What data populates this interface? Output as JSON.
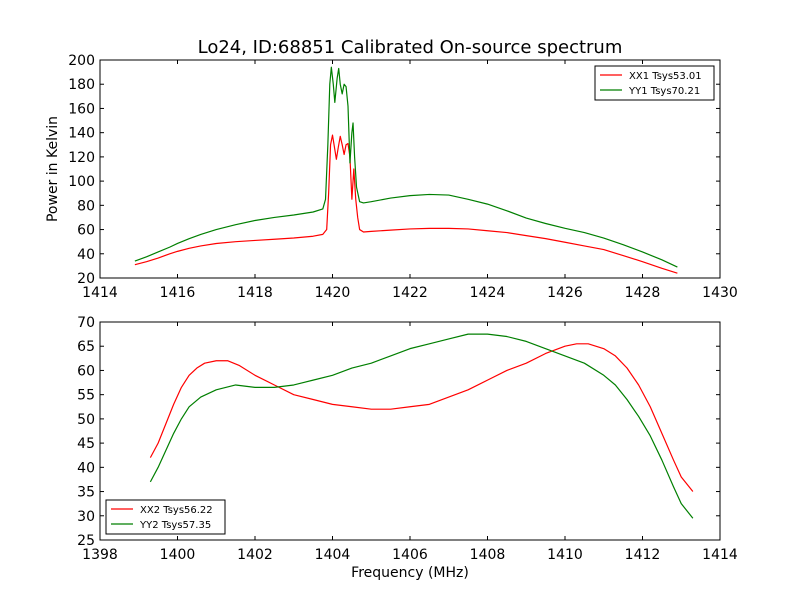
{
  "figure": {
    "title": "Lo24, ID:68851 Calibrated On-source spectrum"
  },
  "colors": {
    "red": "#ff0000",
    "green": "#007f00"
  },
  "chart_data": [
    {
      "type": "line",
      "title": "Lo24, ID:68851 Calibrated On-source spectrum",
      "xlabel": "",
      "ylabel": "Power in Kelvin",
      "xlim": [
        1414,
        1430
      ],
      "ylim": [
        20,
        200
      ],
      "x_ticks": [
        "1414",
        "1416",
        "1418",
        "1420",
        "1422",
        "1424",
        "1426",
        "1428",
        "1430"
      ],
      "y_ticks": [
        "20",
        "40",
        "60",
        "80",
        "100",
        "120",
        "140",
        "160",
        "180",
        "200"
      ],
      "legend_position": "top-right",
      "grid": false,
      "series": [
        {
          "name": "XX1 Tsys53.01",
          "color": "#ff0000",
          "points": [
            [
              1414.9,
              31
            ],
            [
              1415.2,
              33.5
            ],
            [
              1415.5,
              36.5
            ],
            [
              1415.8,
              40
            ],
            [
              1416.0,
              42
            ],
            [
              1416.3,
              44.5
            ],
            [
              1416.6,
              46.5
            ],
            [
              1417.0,
              48.5
            ],
            [
              1417.5,
              50
            ],
            [
              1418.0,
              51
            ],
            [
              1418.5,
              52
            ],
            [
              1419.0,
              53
            ],
            [
              1419.5,
              54.5
            ],
            [
              1419.75,
              56
            ],
            [
              1419.85,
              60
            ],
            [
              1419.9,
              90
            ],
            [
              1419.95,
              130
            ],
            [
              1420.0,
              138
            ],
            [
              1420.05,
              128
            ],
            [
              1420.1,
              118
            ],
            [
              1420.15,
              128
            ],
            [
              1420.2,
              137
            ],
            [
              1420.25,
              130
            ],
            [
              1420.3,
              122
            ],
            [
              1420.35,
              130
            ],
            [
              1420.4,
              131
            ],
            [
              1420.45,
              120
            ],
            [
              1420.5,
              85
            ],
            [
              1420.55,
              110
            ],
            [
              1420.6,
              85
            ],
            [
              1420.65,
              70
            ],
            [
              1420.7,
              60
            ],
            [
              1420.8,
              58
            ],
            [
              1421.0,
              58.5
            ],
            [
              1421.5,
              59.5
            ],
            [
              1422.0,
              60.5
            ],
            [
              1422.5,
              61
            ],
            [
              1423.0,
              61
            ],
            [
              1423.5,
              60.5
            ],
            [
              1424.0,
              59
            ],
            [
              1424.5,
              57.5
            ],
            [
              1425.0,
              55
            ],
            [
              1425.5,
              52.5
            ],
            [
              1426.0,
              49.5
            ],
            [
              1426.5,
              46.5
            ],
            [
              1427.0,
              43.5
            ],
            [
              1427.5,
              38.5
            ],
            [
              1428.0,
              33.5
            ],
            [
              1428.5,
              28
            ],
            [
              1428.9,
              24
            ]
          ]
        },
        {
          "name": "YY1 Tsys70.21",
          "color": "#007f00",
          "points": [
            [
              1414.9,
              34
            ],
            [
              1415.2,
              37.5
            ],
            [
              1415.5,
              41.5
            ],
            [
              1415.8,
              45.5
            ],
            [
              1416.0,
              48.5
            ],
            [
              1416.3,
              52.5
            ],
            [
              1416.6,
              56
            ],
            [
              1417.0,
              60
            ],
            [
              1417.5,
              64
            ],
            [
              1418.0,
              67.5
            ],
            [
              1418.5,
              70
            ],
            [
              1419.0,
              72
            ],
            [
              1419.5,
              74.5
            ],
            [
              1419.75,
              77
            ],
            [
              1419.82,
              85
            ],
            [
              1419.88,
              130
            ],
            [
              1419.93,
              180
            ],
            [
              1419.97,
              194
            ],
            [
              1420.02,
              180
            ],
            [
              1420.06,
              165
            ],
            [
              1420.12,
              185
            ],
            [
              1420.16,
              193
            ],
            [
              1420.2,
              180
            ],
            [
              1420.25,
              172
            ],
            [
              1420.3,
              180
            ],
            [
              1420.35,
              178
            ],
            [
              1420.4,
              162
            ],
            [
              1420.45,
              115
            ],
            [
              1420.5,
              140
            ],
            [
              1420.53,
              148
            ],
            [
              1420.57,
              120
            ],
            [
              1420.62,
              95
            ],
            [
              1420.7,
              83
            ],
            [
              1420.8,
              82
            ],
            [
              1421.0,
              83
            ],
            [
              1421.5,
              86
            ],
            [
              1422.0,
              88
            ],
            [
              1422.5,
              89
            ],
            [
              1423.0,
              88.5
            ],
            [
              1423.5,
              85
            ],
            [
              1424.0,
              81
            ],
            [
              1424.5,
              75.5
            ],
            [
              1425.0,
              69.5
            ],
            [
              1425.5,
              65
            ],
            [
              1426.0,
              61
            ],
            [
              1426.5,
              57.5
            ],
            [
              1427.0,
              53
            ],
            [
              1427.5,
              47.5
            ],
            [
              1428.0,
              41.5
            ],
            [
              1428.5,
              35
            ],
            [
              1428.9,
              29
            ]
          ]
        }
      ]
    },
    {
      "type": "line",
      "title": "",
      "xlabel": "Frequency (MHz)",
      "ylabel": "",
      "xlim": [
        1398,
        1414
      ],
      "ylim": [
        25,
        70
      ],
      "x_ticks": [
        "1398",
        "1400",
        "1402",
        "1404",
        "1406",
        "1408",
        "1410",
        "1412",
        "1414"
      ],
      "y_ticks": [
        "25",
        "30",
        "35",
        "40",
        "45",
        "50",
        "55",
        "60",
        "65",
        "70"
      ],
      "legend_position": "bottom-left",
      "grid": false,
      "series": [
        {
          "name": "XX2 Tsys56.22",
          "color": "#ff0000",
          "points": [
            [
              1399.3,
              42
            ],
            [
              1399.5,
              45
            ],
            [
              1399.7,
              49
            ],
            [
              1399.9,
              53
            ],
            [
              1400.1,
              56.5
            ],
            [
              1400.3,
              59
            ],
            [
              1400.5,
              60.5
            ],
            [
              1400.7,
              61.5
            ],
            [
              1401.0,
              62
            ],
            [
              1401.3,
              62
            ],
            [
              1401.6,
              61
            ],
            [
              1402.0,
              59
            ],
            [
              1402.5,
              57
            ],
            [
              1403.0,
              55
            ],
            [
              1403.5,
              54
            ],
            [
              1404.0,
              53
            ],
            [
              1404.5,
              52.5
            ],
            [
              1405.0,
              52
            ],
            [
              1405.5,
              52
            ],
            [
              1406.0,
              52.5
            ],
            [
              1406.5,
              53
            ],
            [
              1407.0,
              54.5
            ],
            [
              1407.5,
              56
            ],
            [
              1408.0,
              58
            ],
            [
              1408.5,
              60
            ],
            [
              1409.0,
              61.5
            ],
            [
              1409.5,
              63.5
            ],
            [
              1410.0,
              65
            ],
            [
              1410.3,
              65.5
            ],
            [
              1410.6,
              65.5
            ],
            [
              1411.0,
              64.5
            ],
            [
              1411.3,
              63
            ],
            [
              1411.6,
              60.5
            ],
            [
              1411.9,
              57
            ],
            [
              1412.2,
              52.5
            ],
            [
              1412.5,
              47
            ],
            [
              1412.8,
              41.5
            ],
            [
              1413.0,
              38
            ],
            [
              1413.3,
              35
            ]
          ]
        },
        {
          "name": "YY2 Tsys57.35",
          "color": "#007f00",
          "points": [
            [
              1399.3,
              37
            ],
            [
              1399.5,
              40
            ],
            [
              1399.7,
              43.5
            ],
            [
              1399.9,
              47
            ],
            [
              1400.1,
              50
            ],
            [
              1400.3,
              52.5
            ],
            [
              1400.6,
              54.5
            ],
            [
              1401.0,
              56
            ],
            [
              1401.5,
              57
            ],
            [
              1402.0,
              56.5
            ],
            [
              1402.5,
              56.5
            ],
            [
              1403.0,
              57
            ],
            [
              1403.5,
              58
            ],
            [
              1404.0,
              59
            ],
            [
              1404.5,
              60.5
            ],
            [
              1405.0,
              61.5
            ],
            [
              1405.5,
              63
            ],
            [
              1406.0,
              64.5
            ],
            [
              1406.5,
              65.5
            ],
            [
              1407.0,
              66.5
            ],
            [
              1407.5,
              67.5
            ],
            [
              1408.0,
              67.5
            ],
            [
              1408.5,
              67
            ],
            [
              1409.0,
              66
            ],
            [
              1409.5,
              64.5
            ],
            [
              1410.0,
              63
            ],
            [
              1410.5,
              61.5
            ],
            [
              1411.0,
              59
            ],
            [
              1411.3,
              57
            ],
            [
              1411.6,
              54
            ],
            [
              1411.9,
              50.5
            ],
            [
              1412.2,
              46.5
            ],
            [
              1412.5,
              41.5
            ],
            [
              1412.8,
              36
            ],
            [
              1413.0,
              32.5
            ],
            [
              1413.3,
              29.5
            ]
          ]
        }
      ]
    }
  ]
}
